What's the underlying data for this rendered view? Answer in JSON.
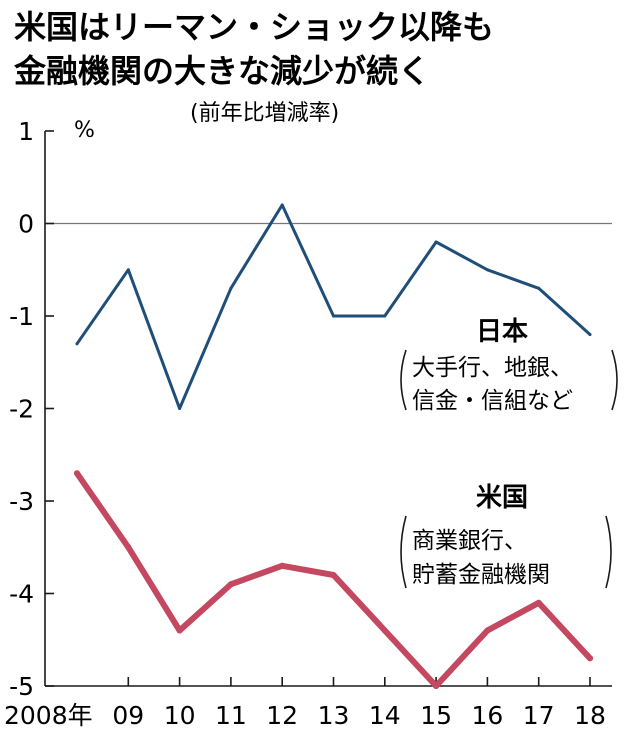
{
  "chart_data": {
    "type": "line",
    "title_lines": [
      "米国はリーマン・ショック以降も",
      "金融機関の大きな減少が続く"
    ],
    "subtitle": "(前年比増減率)",
    "unit": "%",
    "xlabel": "",
    "ylabel": "",
    "categories": [
      "2008年",
      "09",
      "10",
      "11",
      "12",
      "13",
      "14",
      "15",
      "16",
      "17",
      "18"
    ],
    "ylim": [
      -5,
      1
    ],
    "yticks": [
      "1",
      "0",
      "-1",
      "-2",
      "-3",
      "-4",
      "-5"
    ],
    "zero_line": true,
    "grid": false,
    "series": [
      {
        "name": "日本",
        "note_lines": [
          "大手行、地銀、",
          "信金・信組など"
        ],
        "color": "#1f4e79",
        "values": [
          -1.3,
          -0.5,
          -2.0,
          -0.7,
          0.2,
          -1.0,
          -1.0,
          -0.2,
          -0.5,
          -0.7,
          -1.2
        ]
      },
      {
        "name": "米国",
        "note_lines": [
          "商業銀行、",
          "貯蓄金融機関"
        ],
        "color": "#c4485f",
        "values": [
          -2.7,
          -3.5,
          -4.4,
          -3.9,
          -3.7,
          -3.8,
          -4.4,
          -5.0,
          -4.4,
          -4.1,
          -4.7
        ]
      }
    ]
  }
}
